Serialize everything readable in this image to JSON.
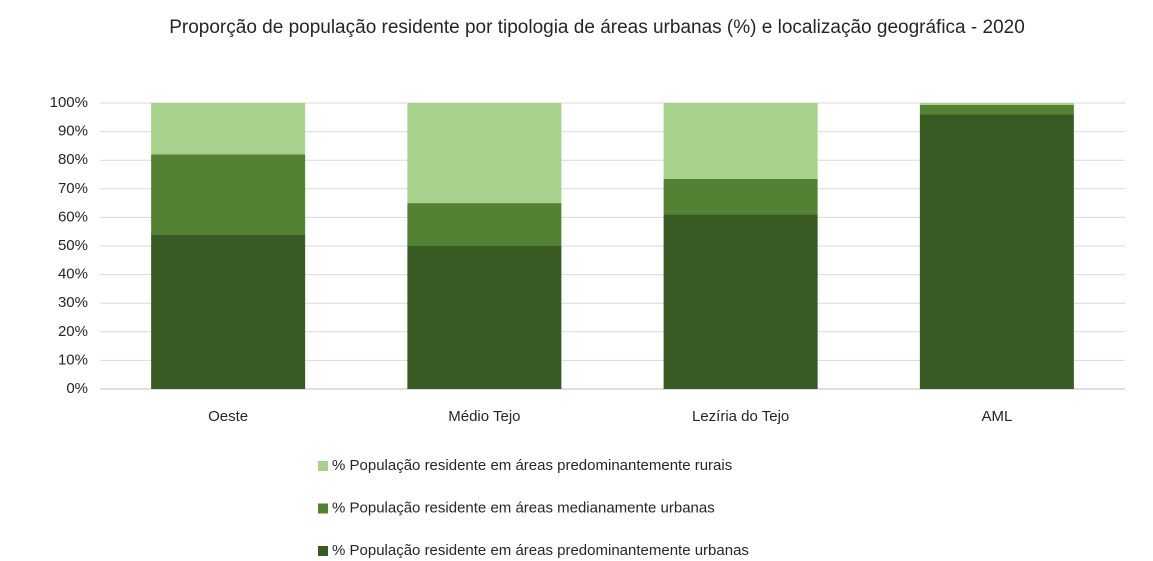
{
  "chart_data": {
    "type": "stacked_bar",
    "title": "Proporção de população residente por tipologia de áreas urbanas (%) e localização geográfica - 2020",
    "categories": [
      "Oeste",
      "Médio Tejo",
      "Lezíria do Tejo",
      "AML"
    ],
    "series": [
      {
        "name": "% População residente em áreas predominantemente urbanas",
        "color": "#3a5a23",
        "values": [
          54,
          50,
          61,
          96
        ]
      },
      {
        "name": "% População residente em áreas medianamente urbanas",
        "color": "#538234",
        "values": [
          28,
          15,
          12.5,
          3.3
        ]
      },
      {
        "name": "% População residente em áreas predominantemente rurais",
        "color": "#a9d18e",
        "values": [
          18,
          35,
          26.5,
          0.7
        ]
      }
    ],
    "ylim": [
      0,
      100
    ],
    "yticks": [
      {
        "value": 0,
        "label": "0%"
      },
      {
        "value": 10,
        "label": "10%"
      },
      {
        "value": 20,
        "label": "20%"
      },
      {
        "value": 30,
        "label": "30%"
      },
      {
        "value": 40,
        "label": "40%"
      },
      {
        "value": 50,
        "label": "50%"
      },
      {
        "value": 60,
        "label": "60%"
      },
      {
        "value": 70,
        "label": "70%"
      },
      {
        "value": 80,
        "label": "80%"
      },
      {
        "value": 90,
        "label": "90%"
      },
      {
        "value": 100,
        "label": "100%"
      }
    ],
    "grid": true
  }
}
